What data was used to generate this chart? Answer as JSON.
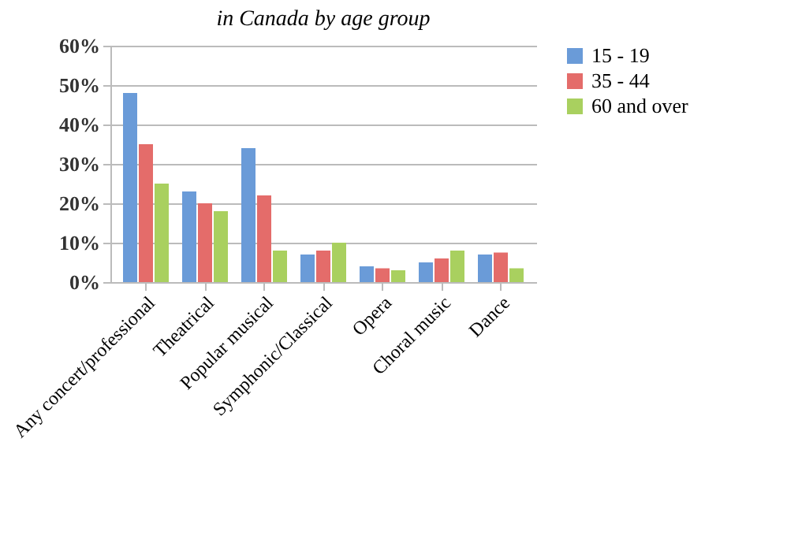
{
  "chart_data": {
    "type": "bar",
    "title": "in Canada by age group",
    "categories": [
      "Any concert/professional",
      "Theatrical",
      "Popular musical",
      "Symphonic/Classical",
      "Opera",
      "Choral music",
      "Dance"
    ],
    "series": [
      {
        "name": "15 - 19",
        "color": "#6a9bd8",
        "values": [
          48,
          23,
          34,
          7,
          4,
          5,
          7
        ]
      },
      {
        "name": "35 - 44",
        "color": "#e46c6a",
        "values": [
          35,
          20,
          22,
          8,
          3.5,
          6,
          7.5
        ]
      },
      {
        "name": "60 and over",
        "color": "#a9d05f",
        "values": [
          25,
          18,
          8,
          10,
          3,
          8,
          3.5
        ]
      }
    ],
    "ylim": [
      0,
      60
    ],
    "yticks": [
      {
        "value": 0,
        "label": "0%"
      },
      {
        "value": 10,
        "label": "10%"
      },
      {
        "value": 20,
        "label": "20%"
      },
      {
        "value": 30,
        "label": "30%"
      },
      {
        "value": 40,
        "label": "40%"
      },
      {
        "value": 50,
        "label": "50%"
      },
      {
        "value": 60,
        "label": "60%"
      }
    ],
    "grid": "y",
    "legend": "right"
  }
}
